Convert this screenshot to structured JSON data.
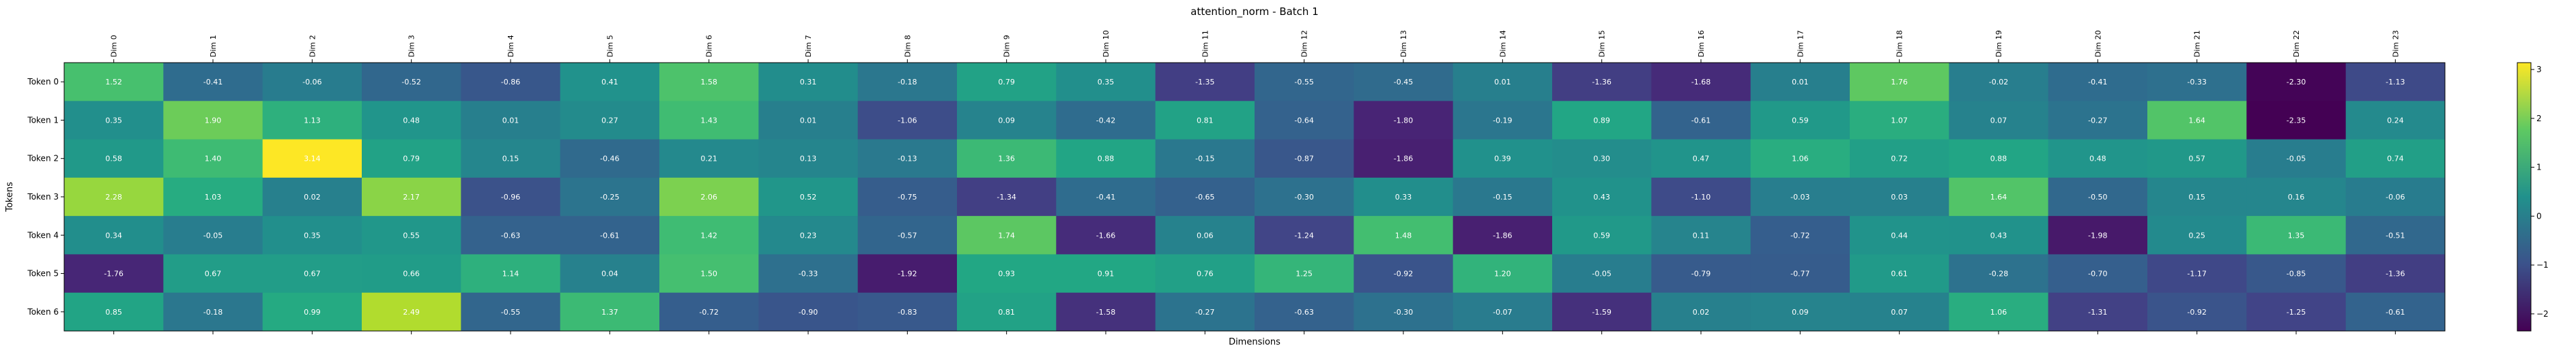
{
  "chart_data": {
    "type": "heatmap",
    "title": "attention_norm - Batch 1",
    "xlabel": "Dimensions",
    "ylabel": "Tokens",
    "x_categories": [
      "Dim 0",
      "Dim 1",
      "Dim 2",
      "Dim 3",
      "Dim 4",
      "Dim 5",
      "Dim 6",
      "Dim 7",
      "Dim 8",
      "Dim 9",
      "Dim 10",
      "Dim 11",
      "Dim 12",
      "Dim 13",
      "Dim 14",
      "Dim 15",
      "Dim 16",
      "Dim 17",
      "Dim 18",
      "Dim 19",
      "Dim 20",
      "Dim 21",
      "Dim 22",
      "Dim 23"
    ],
    "y_categories": [
      "Token 0",
      "Token 1",
      "Token 2",
      "Token 3",
      "Token 4",
      "Token 5",
      "Token 6"
    ],
    "values": [
      [
        1.52,
        -0.41,
        -0.06,
        -0.52,
        -0.86,
        0.41,
        1.58,
        0.31,
        -0.18,
        0.79,
        0.35,
        -1.35,
        -0.55,
        -0.45,
        0.01,
        -1.36,
        -1.68,
        0.01,
        1.76,
        -0.02,
        -0.41,
        -0.33,
        -2.3,
        -1.13
      ],
      [
        0.35,
        1.9,
        1.13,
        0.48,
        0.01,
        0.27,
        1.43,
        0.01,
        -1.06,
        0.09,
        -0.42,
        0.81,
        -0.64,
        -1.8,
        -0.19,
        0.89,
        -0.61,
        0.59,
        1.07,
        0.07,
        -0.27,
        1.64,
        -2.35,
        0.24
      ],
      [
        0.58,
        1.4,
        3.14,
        0.79,
        0.15,
        -0.46,
        0.21,
        0.13,
        -0.13,
        1.36,
        0.88,
        -0.15,
        -0.87,
        -1.86,
        0.39,
        0.3,
        0.47,
        1.06,
        0.72,
        0.88,
        0.48,
        0.57,
        -0.05,
        0.74
      ],
      [
        2.28,
        1.03,
        0.02,
        2.17,
        -0.96,
        -0.25,
        2.06,
        0.52,
        -0.75,
        -1.34,
        -0.41,
        -0.65,
        -0.3,
        0.33,
        -0.15,
        0.43,
        -1.1,
        -0.03,
        0.03,
        1.64,
        -0.5,
        0.15,
        0.16,
        -0.06
      ],
      [
        0.34,
        -0.05,
        0.35,
        0.55,
        -0.63,
        -0.61,
        1.42,
        0.23,
        -0.57,
        1.74,
        -1.66,
        0.06,
        -1.24,
        1.48,
        -1.86,
        0.59,
        0.11,
        -0.72,
        0.44,
        0.43,
        -1.98,
        0.25,
        1.35,
        -0.51
      ],
      [
        -1.76,
        0.67,
        0.67,
        0.66,
        1.14,
        0.04,
        1.5,
        -0.33,
        -1.92,
        0.93,
        0.91,
        0.76,
        1.25,
        -0.92,
        1.2,
        -0.05,
        -0.79,
        -0.77,
        0.61,
        -0.28,
        -0.7,
        -1.17,
        -0.85,
        -1.36
      ],
      [
        0.85,
        -0.18,
        0.99,
        2.49,
        -0.55,
        1.37,
        -0.72,
        -0.9,
        -0.83,
        0.81,
        -1.58,
        -0.27,
        -0.63,
        -0.3,
        -0.07,
        -1.59,
        0.02,
        0.09,
        0.07,
        1.06,
        -1.31,
        -0.92,
        -1.25,
        -0.61
      ]
    ],
    "colormap": "viridis",
    "vmin": -2.35,
    "vmax": 3.14,
    "colorbar_ticks": [
      "−2",
      "−1",
      "0",
      "1",
      "2",
      "3"
    ],
    "colorbar_tick_values": [
      -2,
      -1,
      0,
      1,
      2,
      3
    ],
    "legend": "none",
    "grid": false
  }
}
